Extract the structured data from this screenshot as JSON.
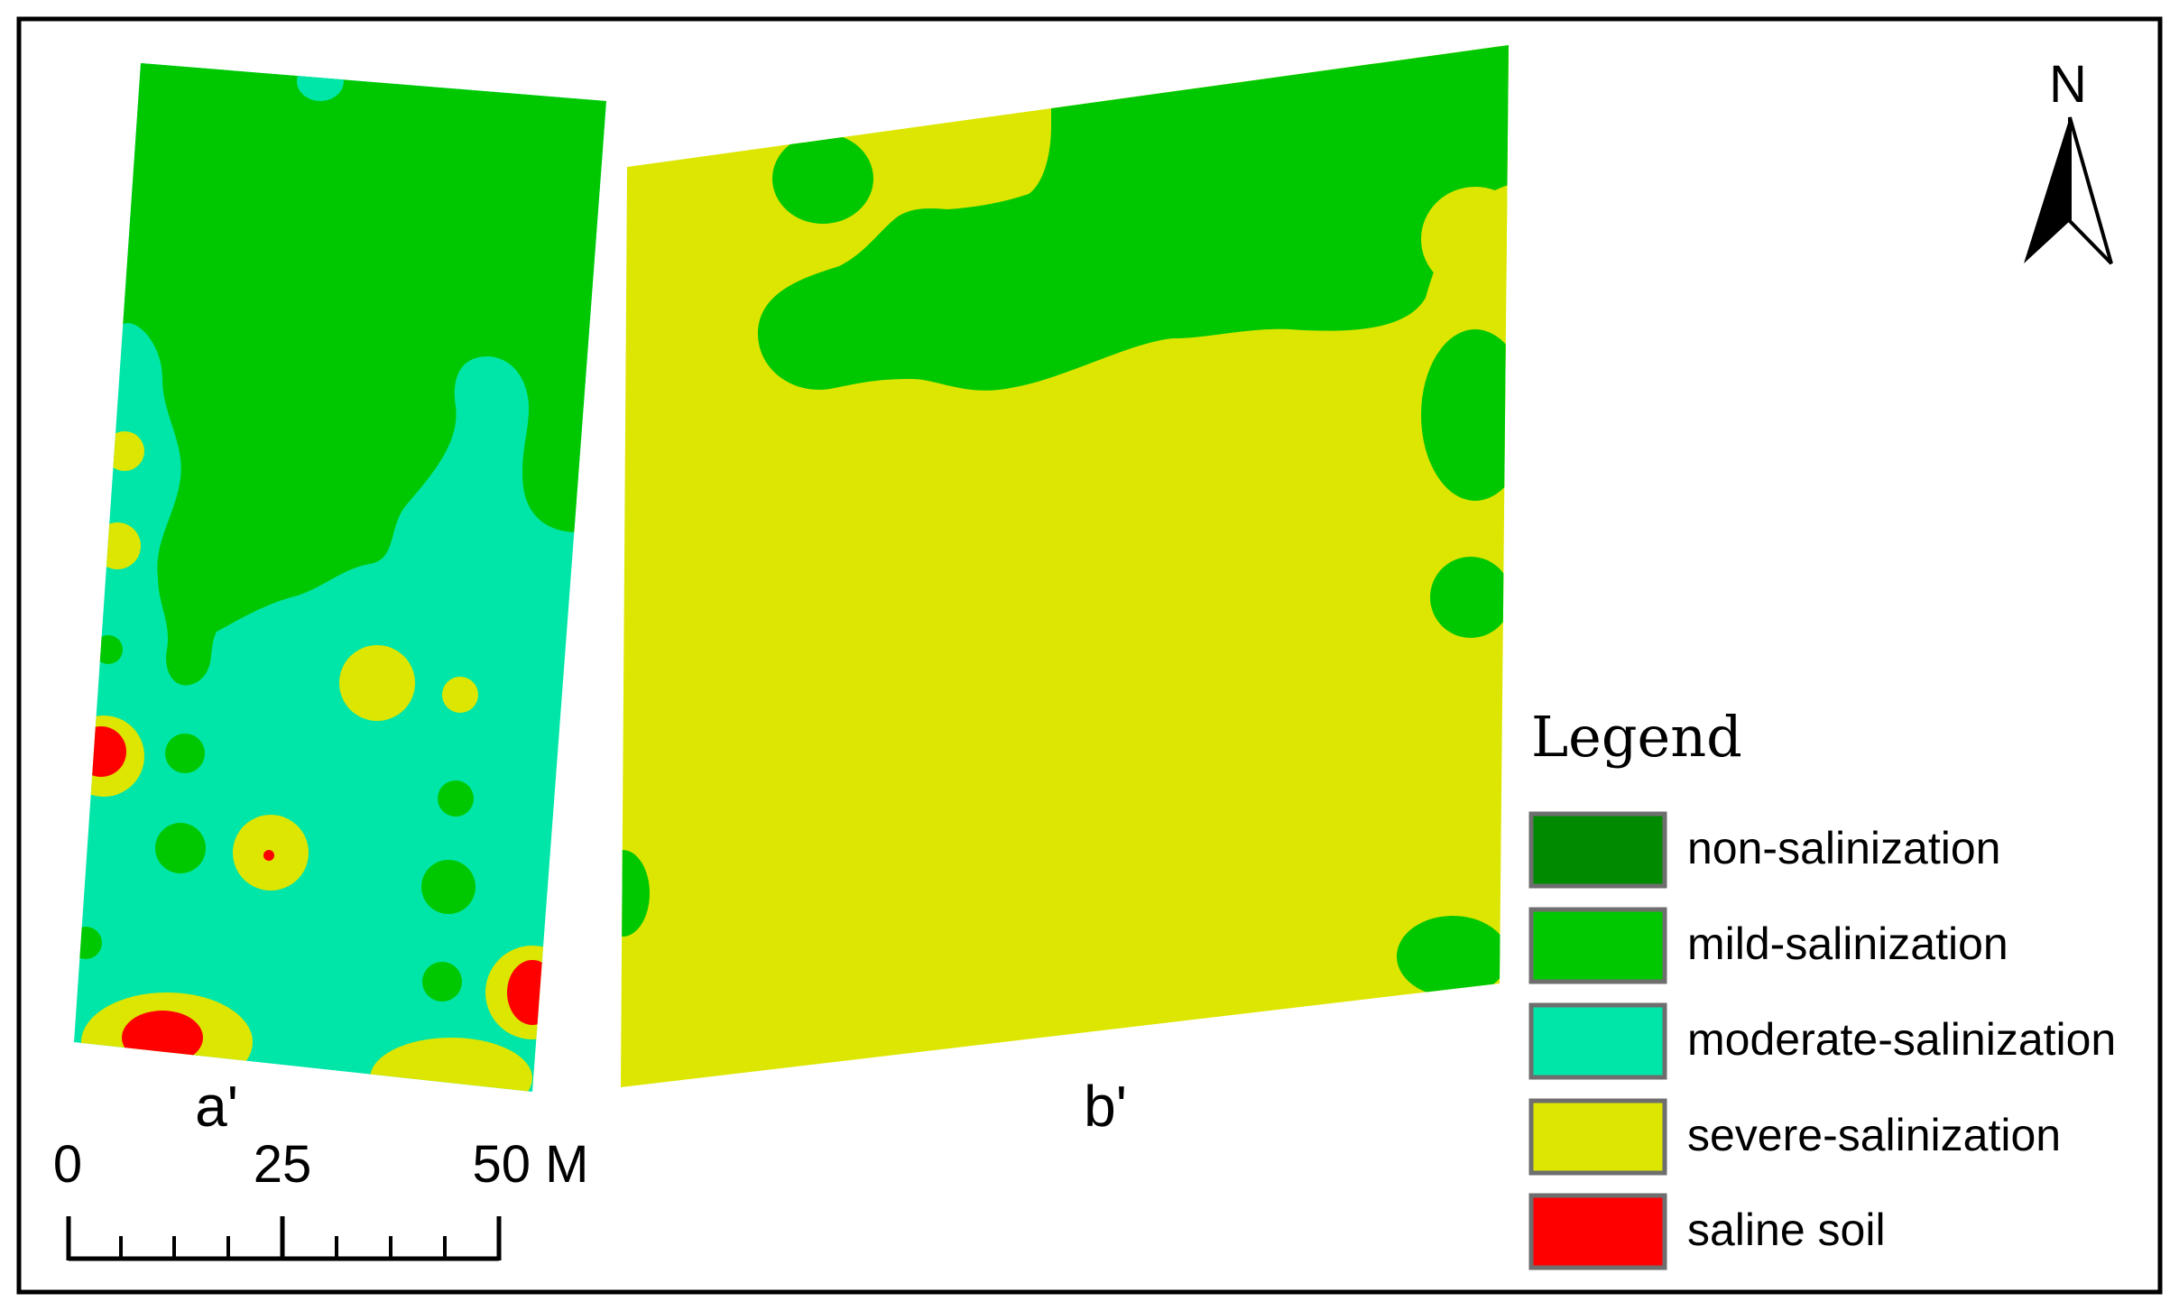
{
  "colors": {
    "non_salinization": "#008a00",
    "mild_salinization": "#00c800",
    "moderate_salinization": "#00e6a8",
    "severe_salinization": "#dde600",
    "saline_soil": "#ff0000",
    "frame": "#000000",
    "legend_border": "#6e6e6e"
  },
  "panels": {
    "a": {
      "label": "a'"
    },
    "b": {
      "label": "b'"
    }
  },
  "north_arrow": {
    "label": "N"
  },
  "scale_bar": {
    "ticks": [
      "0",
      "25",
      "50 M"
    ]
  },
  "legend": {
    "title": "Legend",
    "items": [
      {
        "label": "non-salinization",
        "color": "#008a00"
      },
      {
        "label": "mild-salinization",
        "color": "#00c800"
      },
      {
        "label": "moderate-salinization",
        "color": "#00e6a8"
      },
      {
        "label": "severe-salinization",
        "color": "#dde600"
      },
      {
        "label": "saline soil",
        "color": "#ff0000"
      }
    ]
  }
}
